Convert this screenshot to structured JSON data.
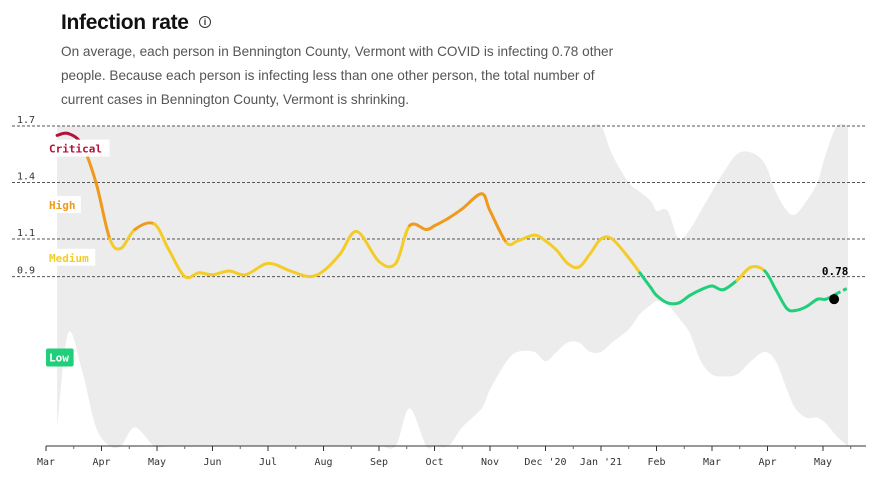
{
  "header": {
    "title": "Infection rate",
    "info_icon": "info-icon",
    "description": "On average, each person in Bennington County, Vermont with COVID is infecting 0.78 other people. Because each person is infecting less than one other person, the total number of current cases in Bennington County, Vermont is shrinking."
  },
  "colors": {
    "critical": "#b0123a",
    "high": "#ef9a1c",
    "medium": "#f3cc2a",
    "low": "#1fcf7a",
    "band": "#ececec"
  },
  "chart_data": {
    "type": "line",
    "title": "Infection rate",
    "xlabel": "",
    "ylabel": "",
    "ylim": [
      0,
      1.7
    ],
    "y_ticks": [
      0.9,
      1.1,
      1.4,
      1.7
    ],
    "y_tick_labels": [
      "0.9",
      "1.1",
      "1.4",
      "1.7"
    ],
    "x_ticks": [
      0,
      1,
      2,
      3,
      4,
      5,
      6,
      7,
      8,
      9,
      10,
      11,
      12,
      13,
      14
    ],
    "x_tick_labels": [
      "Mar",
      "Apr",
      "May",
      "Jun",
      "Jul",
      "Aug",
      "Sep",
      "Oct",
      "Nov",
      "Dec '20",
      "Jan '21",
      "Feb",
      "Mar",
      "Apr",
      "May"
    ],
    "xlim": [
      0,
      14.5
    ],
    "zones": [
      {
        "label": "Critical",
        "min": 1.6,
        "color": "#b0123a",
        "label_y": 1.58
      },
      {
        "label": "High",
        "min": 1.1,
        "color": "#ef9a1c",
        "label_y": 1.28
      },
      {
        "label": "Medium",
        "min": 0.9,
        "color": "#f3cc2a",
        "label_y": 1.0
      },
      {
        "label": "Low",
        "min": 0,
        "color": "#1fcf7a",
        "label_y": 0.47
      }
    ],
    "series": [
      {
        "name": "Infection rate",
        "x": [
          0.2,
          0.4,
          0.65,
          0.9,
          1.15,
          1.35,
          1.6,
          1.95,
          2.2,
          2.5,
          2.75,
          3.0,
          3.3,
          3.6,
          4.0,
          4.4,
          4.75,
          5.0,
          5.3,
          5.6,
          6.0,
          6.3,
          6.55,
          6.85,
          7.0,
          7.25,
          7.5,
          7.85,
          8.0,
          8.3,
          8.5,
          8.8,
          9.0,
          9.2,
          9.4,
          9.6,
          9.8,
          10.0,
          10.2,
          10.5,
          10.7,
          10.9,
          11.0,
          11.2,
          11.4,
          11.6,
          11.8,
          12.0,
          12.2,
          12.45,
          12.7,
          12.95,
          13.15,
          13.35,
          13.5,
          13.7,
          13.9,
          14.05,
          14.25,
          14.45
        ],
        "y": [
          1.65,
          1.66,
          1.6,
          1.4,
          1.1,
          1.05,
          1.15,
          1.18,
          1.05,
          0.9,
          0.92,
          0.91,
          0.93,
          0.91,
          0.97,
          0.93,
          0.9,
          0.93,
          1.02,
          1.14,
          0.98,
          0.97,
          1.17,
          1.15,
          1.17,
          1.21,
          1.26,
          1.34,
          1.25,
          1.08,
          1.09,
          1.12,
          1.09,
          1.04,
          0.97,
          0.95,
          1.02,
          1.1,
          1.1,
          1.0,
          0.92,
          0.84,
          0.8,
          0.76,
          0.76,
          0.8,
          0.83,
          0.85,
          0.83,
          0.88,
          0.95,
          0.93,
          0.83,
          0.73,
          0.72,
          0.74,
          0.78,
          0.78,
          0.81,
          0.84
        ]
      }
    ],
    "band": {
      "upper": [
        1.7,
        1.7,
        1.7,
        1.7,
        1.7,
        1.7,
        1.7,
        1.7,
        1.7,
        1.7,
        1.7,
        1.7,
        1.7,
        1.7,
        1.7,
        1.7,
        1.7,
        1.7,
        1.7,
        1.7,
        1.7,
        1.7,
        1.7,
        1.7,
        1.7,
        1.7,
        1.7,
        1.7,
        1.7,
        1.7,
        1.7,
        1.7,
        1.7,
        1.7,
        1.7,
        1.7,
        1.7,
        1.7,
        1.55,
        1.4,
        1.35,
        1.3,
        1.25,
        1.25,
        1.1,
        1.15,
        1.25,
        1.35,
        1.45,
        1.55,
        1.56,
        1.5,
        1.35,
        1.25,
        1.23,
        1.3,
        1.4,
        1.55,
        1.7,
        1.7
      ],
      "lower": [
        0.1,
        0.6,
        0.4,
        0.1,
        0.0,
        0.0,
        0.1,
        0.0,
        0.0,
        0.0,
        0.0,
        0.0,
        0.0,
        0.0,
        0.0,
        0.0,
        0.0,
        0.0,
        0.0,
        0.0,
        0.0,
        0.0,
        0.2,
        0.0,
        0.0,
        0.0,
        0.1,
        0.2,
        0.3,
        0.45,
        0.5,
        0.5,
        0.45,
        0.5,
        0.55,
        0.55,
        0.5,
        0.5,
        0.55,
        0.62,
        0.7,
        0.75,
        0.77,
        0.75,
        0.68,
        0.6,
        0.45,
        0.38,
        0.37,
        0.38,
        0.45,
        0.5,
        0.45,
        0.3,
        0.2,
        0.15,
        0.15,
        0.12,
        0.05,
        0.0
      ]
    },
    "current": {
      "x": 14.2,
      "y": 0.78,
      "label": "0.78"
    }
  }
}
